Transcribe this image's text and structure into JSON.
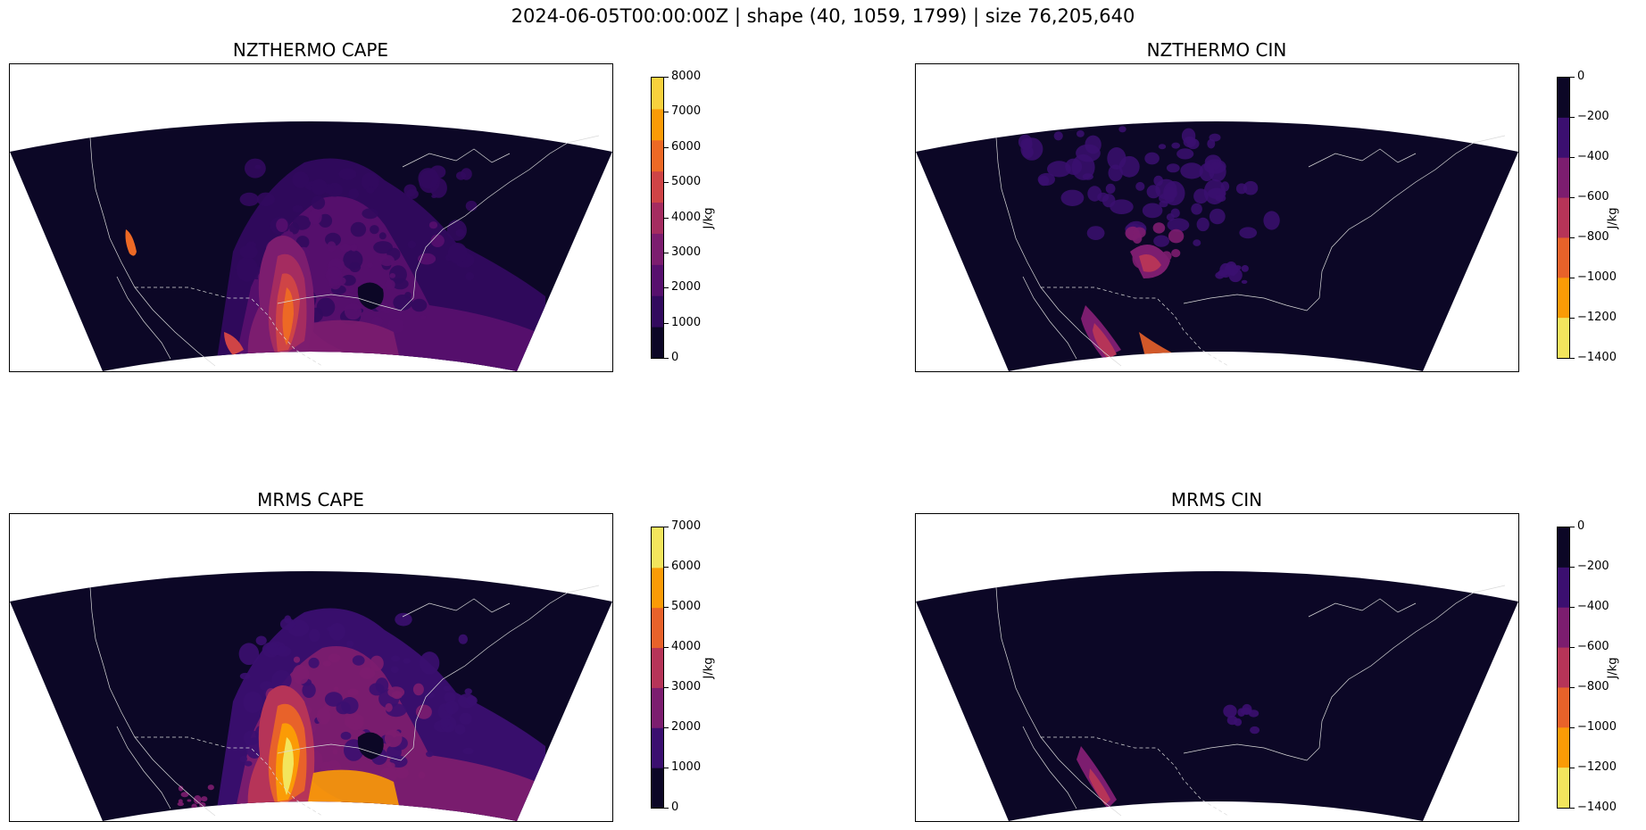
{
  "figure": {
    "suptitle": "2024-06-05T00:00:00Z | shape (40, 1059, 1799) | size 76,205,640"
  },
  "chart_data": [
    {
      "type": "heatmap",
      "title": "NZTHERMO CAPE",
      "colorbar_label": "J/kg",
      "colorbar_ticks": [
        "0",
        "1000",
        "2000",
        "3000",
        "4000",
        "5000",
        "6000",
        "7000",
        "8000"
      ],
      "levels": [
        0,
        1000,
        2000,
        3000,
        4000,
        5000,
        6000,
        7000,
        8000
      ],
      "colors": [
        "#0c0726",
        "#320a5e",
        "#57106e",
        "#7c1d6f",
        "#a52c60",
        "#cf4446",
        "#ed6925",
        "#fb9b06",
        "#f7d13d"
      ],
      "colorbar_reversed": false
    },
    {
      "type": "heatmap",
      "title": "NZTHERMO CIN",
      "colorbar_label": "J/kg",
      "colorbar_ticks": [
        "0",
        "−200",
        "−400",
        "−600",
        "−800",
        "−1000",
        "−1200",
        "−1400"
      ],
      "levels": [
        0,
        -200,
        -400,
        -600,
        -800,
        -1000,
        -1200,
        -1400
      ],
      "colors": [
        "#0c0726",
        "#3b0f70",
        "#7c1d6f",
        "#b63458",
        "#e8622a",
        "#fb9b06",
        "#f3e55d"
      ],
      "colorbar_reversed": true
    },
    {
      "type": "heatmap",
      "title": "MRMS CAPE",
      "colorbar_label": "J/kg",
      "colorbar_ticks": [
        "0",
        "1000",
        "2000",
        "3000",
        "4000",
        "5000",
        "6000",
        "7000"
      ],
      "levels": [
        0,
        1000,
        2000,
        3000,
        4000,
        5000,
        6000,
        7000
      ],
      "colors": [
        "#0c0726",
        "#3b0f70",
        "#7c1d6f",
        "#b63458",
        "#e8622a",
        "#fb9b06",
        "#f3e55d"
      ],
      "colorbar_reversed": false
    },
    {
      "type": "heatmap",
      "title": "MRMS CIN",
      "colorbar_label": "J/kg",
      "colorbar_ticks": [
        "0",
        "−200",
        "−400",
        "−600",
        "−800",
        "−1000",
        "−1200",
        "−1400"
      ],
      "levels": [
        0,
        -200,
        -400,
        -600,
        -800,
        -1000,
        -1200,
        -1400
      ],
      "colors": [
        "#0c0726",
        "#3b0f70",
        "#7c1d6f",
        "#b63458",
        "#e8622a",
        "#fb9b06",
        "#f3e55d"
      ],
      "colorbar_reversed": true
    }
  ]
}
